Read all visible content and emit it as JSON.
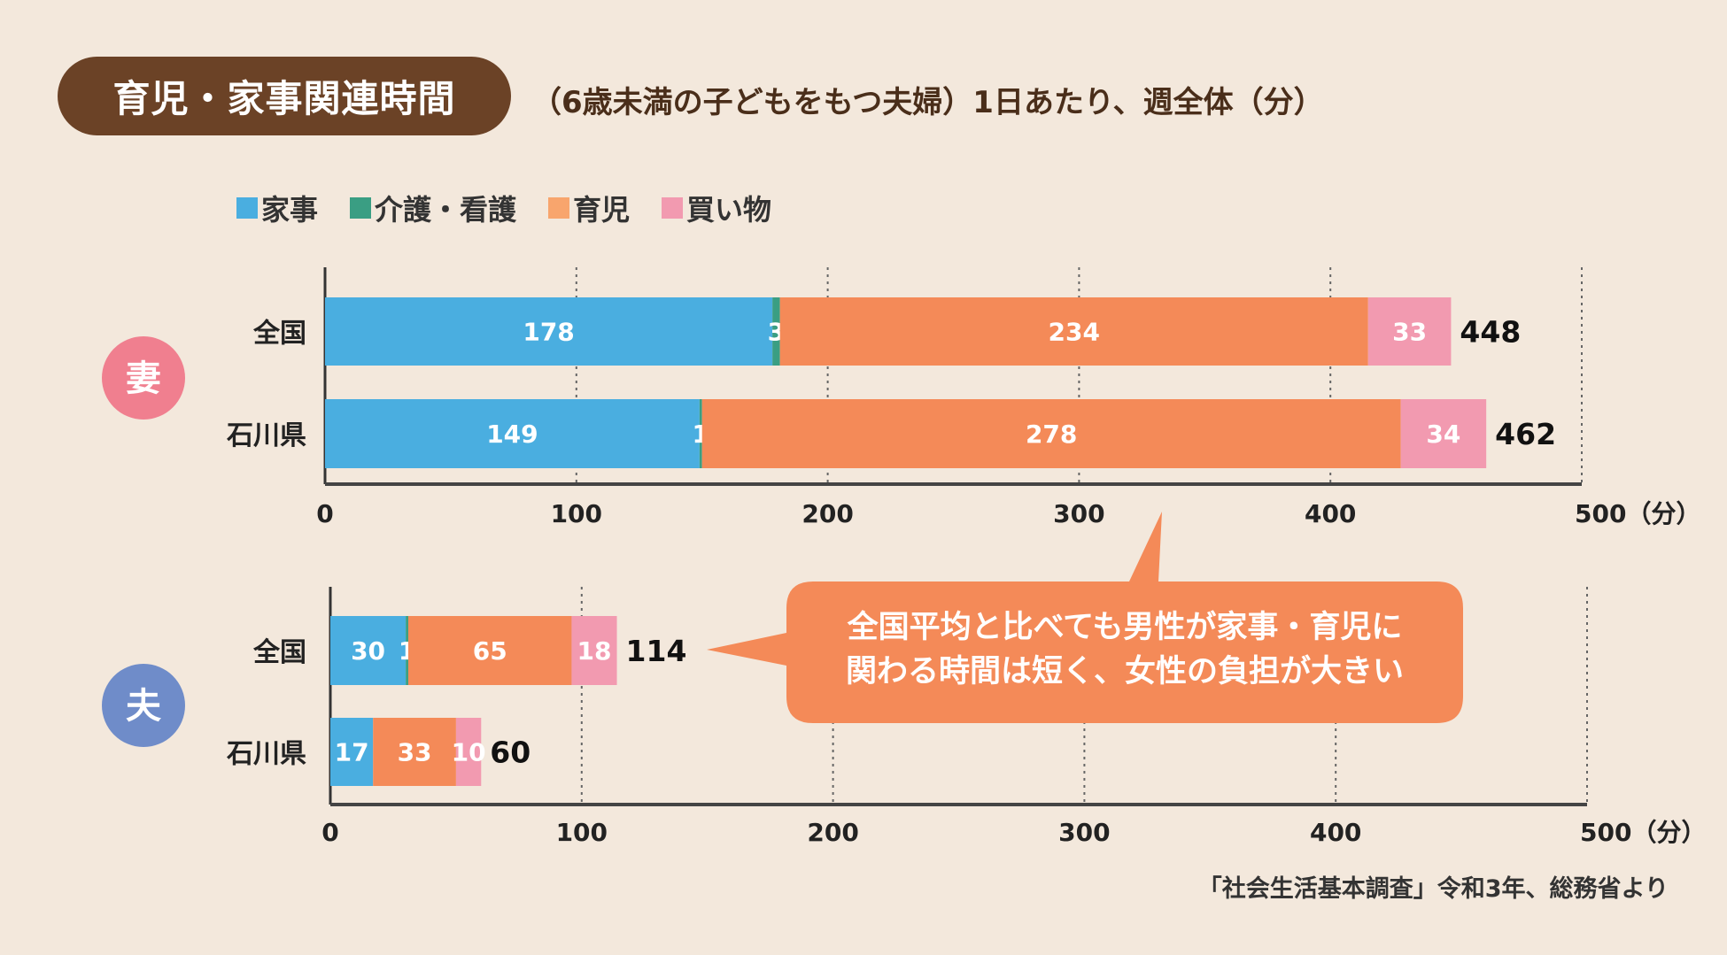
{
  "title": "育児・家事関連時間",
  "subtitle": "（6歳未満の子どもをもつ夫婦）1日あたり、週全体（分）",
  "legend": [
    {
      "label": "家事",
      "color": "#4aaee0"
    },
    {
      "label": "介護・看護",
      "color": "#3a9e83"
    },
    {
      "label": "育児",
      "color": "#f48a58"
    },
    {
      "label": "買い物",
      "color": "#f29ab0"
    }
  ],
  "callout": {
    "line1": "全国平均と比べても男性が家事・育児に",
    "line2": "関わる時間は短く、女性の負担が大きい"
  },
  "source": "「社会生活基本調査」令和3年、総務省より",
  "chart_data": [
    {
      "type": "bar",
      "orientation": "horizontal",
      "stacked": true,
      "group_label": "妻",
      "group_color": "#f07f8f",
      "categories": [
        "全国",
        "石川県"
      ],
      "series": [
        {
          "name": "家事",
          "values": [
            178,
            149
          ]
        },
        {
          "name": "介護・看護",
          "values": [
            3,
            1
          ]
        },
        {
          "name": "育児",
          "values": [
            234,
            278
          ]
        },
        {
          "name": "買い物",
          "values": [
            33,
            34
          ]
        }
      ],
      "totals": [
        448,
        462
      ],
      "xlim": [
        0,
        500
      ],
      "xticks": [
        "0",
        "100",
        "200",
        "300",
        "400",
        "500（分）"
      ],
      "grid": true
    },
    {
      "type": "bar",
      "orientation": "horizontal",
      "stacked": true,
      "group_label": "夫",
      "group_color": "#6f8cc9",
      "categories": [
        "全国",
        "石川県"
      ],
      "series": [
        {
          "name": "家事",
          "values": [
            30,
            17
          ]
        },
        {
          "name": "介護・看護",
          "values": [
            1,
            0
          ]
        },
        {
          "name": "育児",
          "values": [
            65,
            33
          ]
        },
        {
          "name": "買い物",
          "values": [
            18,
            10
          ]
        }
      ],
      "totals": [
        114,
        60
      ],
      "xlim": [
        0,
        500
      ],
      "xticks": [
        "0",
        "100",
        "200",
        "300",
        "400",
        "500（分）"
      ],
      "grid": true
    }
  ]
}
